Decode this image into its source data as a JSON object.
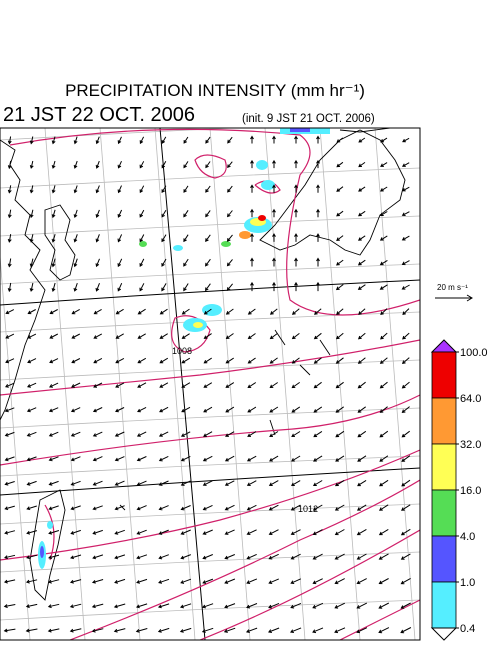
{
  "header": {
    "title": "PRECIPITATION INTENSITY (mm hr⁻¹)",
    "valid_time": "21 JST 22 OCT. 2006",
    "init_time": "(init. 9 JST 21 OCT. 2006)"
  },
  "wind_scale": {
    "label": "20 m s⁻¹"
  },
  "isobar_labels": [
    "1008",
    "1012"
  ],
  "colorbar": {
    "levels": [
      {
        "value": 100,
        "label": "100.0"
      },
      {
        "value": 64,
        "label": "64.0"
      },
      {
        "value": 32,
        "label": "32.0"
      },
      {
        "value": 16,
        "label": "16.0"
      },
      {
        "value": 4,
        "label": "4.0"
      },
      {
        "value": 1,
        "label": "1.0"
      },
      {
        "value": 0.4,
        "label": "0.4"
      }
    ],
    "colors": [
      "#ee0000",
      "#ff9933",
      "#ffff55",
      "#55dd55",
      "#5555ff",
      "#55eeff"
    ],
    "over_color": "#aa33ff",
    "under_color": "#ffffff"
  }
}
